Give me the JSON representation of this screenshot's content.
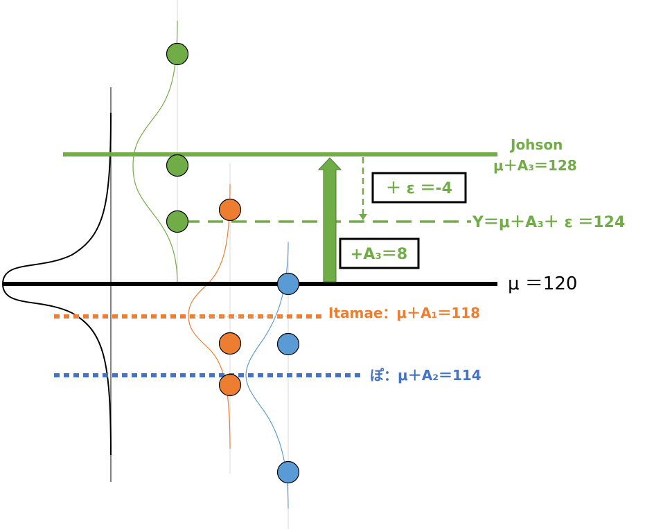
{
  "labels": {
    "johnson_name": "Johson",
    "johnson_formula": "μ＋A₃＝128",
    "y_formula": "Y＝μ＋A₃＋ ε ＝124",
    "mu": "μ ＝120",
    "itamae": "Itamae：μ＋A₁＝118",
    "po": "ぽ：μ＋A₂＝114",
    "epsilon_box": "＋ ε ＝-4",
    "a3_box": "+A₃＝8"
  },
  "colors": {
    "green": "#70ad47",
    "orange": "#ed7d31",
    "blue": "#5b9bd5",
    "dark_blue": "#4472c4",
    "black": "#000000"
  }
}
